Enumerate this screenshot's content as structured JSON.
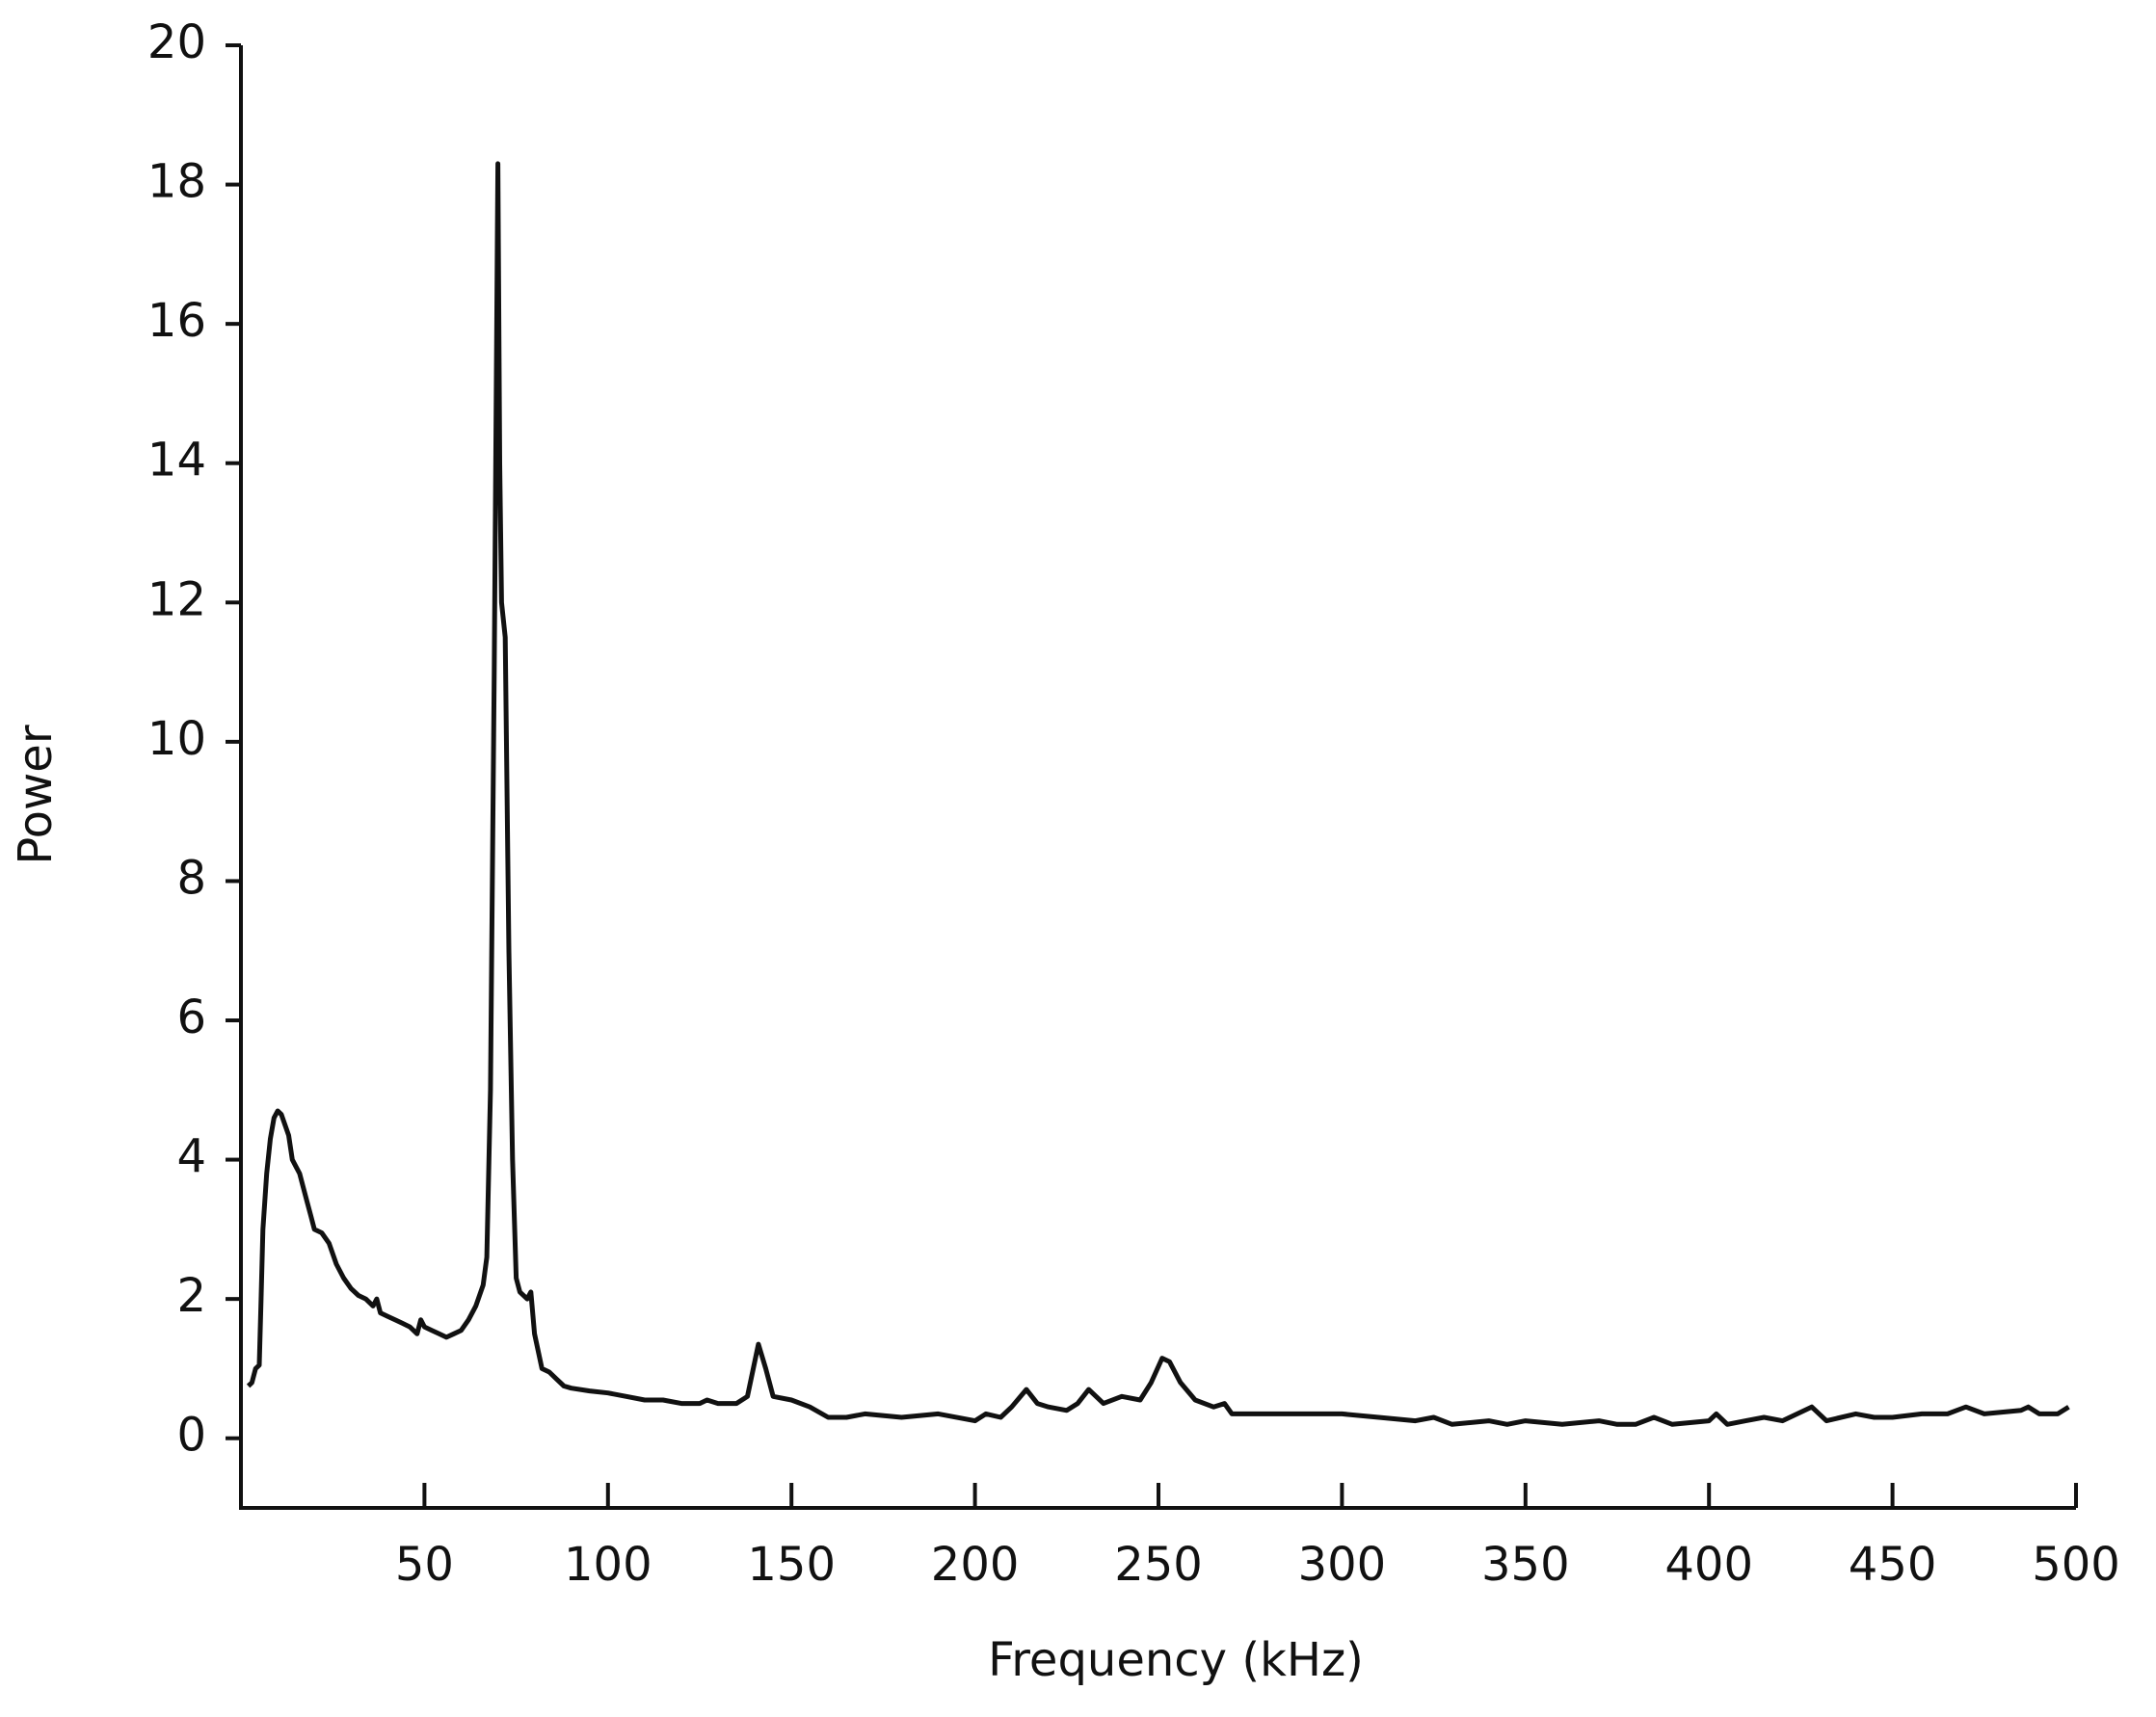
{
  "chart_data": {
    "type": "line",
    "xlabel": "Frequency (kHz)",
    "ylabel": "Power",
    "x": [
      2,
      3,
      4,
      5,
      5.5,
      6,
      7,
      8,
      9,
      10,
      11,
      12,
      13,
      14,
      15,
      16,
      17,
      18,
      19,
      20,
      22,
      24,
      26,
      28,
      30,
      32,
      34,
      36,
      37,
      38,
      40,
      42,
      44,
      46,
      48,
      49,
      50,
      52,
      54,
      56,
      58,
      60,
      62,
      64,
      66,
      67,
      68,
      69,
      70,
      70.5,
      71,
      72,
      73,
      74,
      75,
      76,
      78,
      79,
      80,
      82,
      84,
      86,
      88,
      90,
      95,
      100,
      105,
      110,
      115,
      120,
      125,
      127,
      130,
      135,
      138,
      140,
      141,
      143,
      145,
      150,
      155,
      160,
      165,
      170,
      180,
      190,
      200,
      203,
      207,
      210,
      214,
      217,
      220,
      225,
      228,
      231,
      235,
      240,
      245,
      248,
      251,
      253,
      256,
      260,
      265,
      268,
      270,
      280,
      290,
      300,
      310,
      320,
      325,
      330,
      340,
      345,
      350,
      360,
      370,
      375,
      380,
      385,
      390,
      400,
      402,
      405,
      410,
      415,
      420,
      428,
      432,
      440,
      445,
      450,
      458,
      465,
      470,
      475,
      485,
      487,
      490,
      495,
      498
    ],
    "values": [
      0.75,
      0.8,
      1.0,
      1.05,
      2.0,
      3.0,
      3.8,
      4.3,
      4.6,
      4.7,
      4.65,
      4.5,
      4.35,
      4.0,
      3.9,
      3.8,
      3.6,
      3.4,
      3.2,
      3.0,
      2.95,
      2.8,
      2.5,
      2.3,
      2.15,
      2.05,
      2.0,
      1.9,
      2.0,
      1.8,
      1.75,
      1.7,
      1.65,
      1.6,
      1.5,
      1.7,
      1.6,
      1.55,
      1.5,
      1.45,
      1.5,
      1.55,
      1.7,
      1.9,
      2.2,
      2.6,
      5.0,
      11.0,
      18.3,
      14,
      12,
      11.5,
      7.0,
      4.0,
      2.3,
      2.1,
      2.0,
      2.1,
      1.5,
      1.0,
      0.95,
      0.85,
      0.75,
      0.72,
      0.68,
      0.65,
      0.6,
      0.55,
      0.55,
      0.5,
      0.5,
      0.55,
      0.5,
      0.5,
      0.6,
      1.1,
      1.35,
      1.0,
      0.6,
      0.55,
      0.45,
      0.3,
      0.3,
      0.35,
      0.3,
      0.35,
      0.25,
      0.35,
      0.3,
      0.45,
      0.7,
      0.5,
      0.45,
      0.4,
      0.5,
      0.7,
      0.5,
      0.6,
      0.55,
      0.8,
      1.15,
      1.1,
      0.8,
      0.55,
      0.45,
      0.5,
      0.35,
      0.35,
      0.35,
      0.35,
      0.3,
      0.25,
      0.3,
      0.2,
      0.25,
      0.2,
      0.25,
      0.2,
      0.25,
      0.2,
      0.2,
      0.3,
      0.2,
      0.25,
      0.35,
      0.2,
      0.25,
      0.3,
      0.25,
      0.45,
      0.25,
      0.35,
      0.3,
      0.3,
      0.35,
      0.35,
      0.45,
      0.35,
      0.4,
      0.45,
      0.35,
      0.35,
      0.45
    ],
    "color": "#111111",
    "xlim": [
      0,
      500
    ],
    "xticks": [
      50,
      100,
      150,
      200,
      250,
      300,
      350,
      400,
      450,
      500
    ],
    "ylim": [
      -1,
      20
    ],
    "yticks": [
      0,
      2,
      4,
      6,
      8,
      10,
      12,
      14,
      16,
      18,
      20
    ],
    "grid": false
  }
}
